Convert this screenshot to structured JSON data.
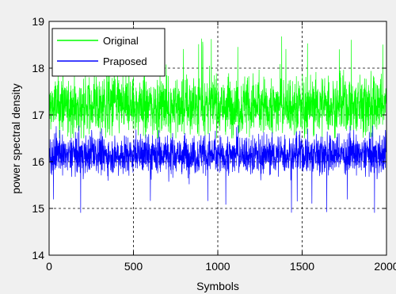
{
  "chart_data": {
    "type": "line",
    "xlabel": "Symbols",
    "ylabel": "power spectral density",
    "xlim": [
      0,
      2000
    ],
    "ylim": [
      14,
      19
    ],
    "x_ticks": [
      "0",
      "500",
      "1000",
      "1500",
      "2000"
    ],
    "y_ticks": [
      "14",
      "15",
      "16",
      "17",
      "18",
      "19"
    ],
    "grid": "dotted",
    "legend_position": "top-left",
    "series": [
      {
        "name": "Original",
        "color": "#00ff00",
        "mean": 17.2,
        "spread": 0.45,
        "min": 16.5,
        "max": 18.7,
        "points": 2000
      },
      {
        "name": "Praposed",
        "color": "#0000ff",
        "mean": 16.15,
        "spread": 0.3,
        "min": 14.9,
        "max": 16.8,
        "points": 2000
      }
    ]
  }
}
